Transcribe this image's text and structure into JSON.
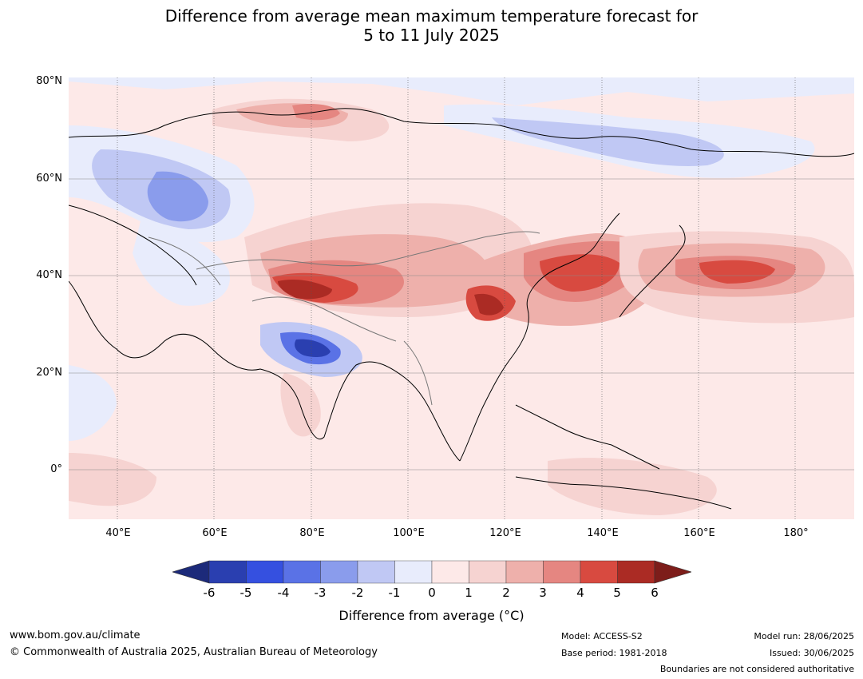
{
  "title": {
    "line1": "Difference from average mean maximum temperature forecast for",
    "line2": "5 to 11 July 2025"
  },
  "map": {
    "lat_labels": [
      "80°N",
      "60°N",
      "40°N",
      "20°N",
      "0°"
    ],
    "lon_labels": [
      "40°E",
      "60°E",
      "80°E",
      "100°E",
      "120°E",
      "140°E",
      "160°E",
      "180°"
    ]
  },
  "legend": {
    "title": "Difference from average (°C)",
    "ticks": [
      "-6",
      "-5",
      "-4",
      "-3",
      "-2",
      "-1",
      "0",
      "1",
      "2",
      "3",
      "4",
      "5",
      "6"
    ],
    "colors": [
      "#1c2a7a",
      "#2a3fb0",
      "#3550e0",
      "#5a72e6",
      "#8a9cec",
      "#c0c8f4",
      "#e8ecfc",
      "#fde9e8",
      "#f6d3d1",
      "#eeb0ab",
      "#e58681",
      "#d84a40",
      "#ab2b24",
      "#7d1d1a"
    ]
  },
  "footer": {
    "website": "www.bom.gov.au/climate",
    "copyright": "© Commonwealth of Australia 2025, Australian Bureau of Meteorology",
    "model": "Model: ACCESS-S2",
    "base_period": "Base period: 1981-2018",
    "model_run": "Model run: 28/06/2025",
    "issued": "Issued: 30/06/2025",
    "disclaimer": "Boundaries are not considered authoritative"
  }
}
